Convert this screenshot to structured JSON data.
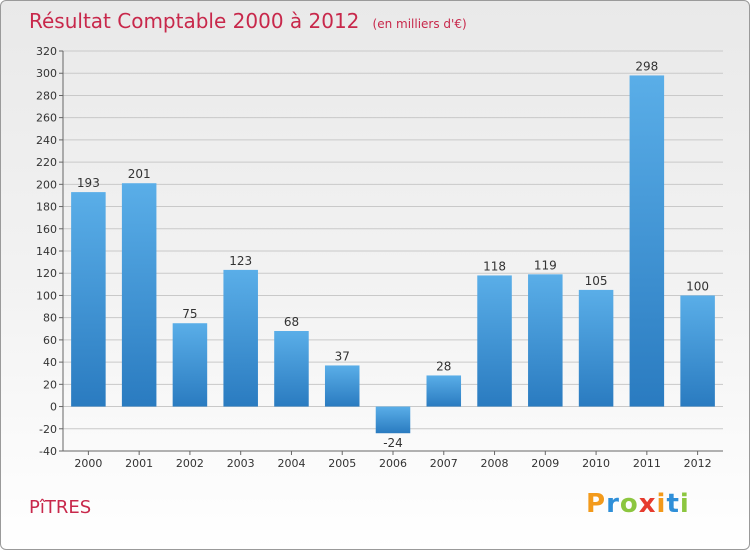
{
  "title": "Résultat Comptable 2000 à 2012",
  "subtitle": "(en milliers d'€)",
  "commune": "PîTRES",
  "logo": {
    "text": "Proxiti",
    "letters": [
      "P",
      "r",
      "o",
      "x",
      "i",
      "t",
      "i"
    ],
    "letter_colors": [
      "#f39a1b",
      "#2f8fd8",
      "#8cc63f",
      "#e63b2e",
      "#f39a1b",
      "#2f8fd8",
      "#8cc63f"
    ]
  },
  "colors": {
    "title": "#c8284b",
    "bar_light": "#5aaee8",
    "bar_dark": "#2a7bc0",
    "grid": "#c9c9c9",
    "axis": "#666666"
  },
  "chart_data": {
    "type": "bar",
    "title": "Résultat Comptable 2000 à 2012",
    "subtitle": "(en milliers d'€)",
    "xlabel": "",
    "ylabel": "",
    "categories": [
      "2000",
      "2001",
      "2002",
      "2003",
      "2004",
      "2005",
      "2006",
      "2007",
      "2008",
      "2009",
      "2010",
      "2011",
      "2012"
    ],
    "values": [
      193,
      201,
      75,
      123,
      68,
      37,
      -24,
      28,
      118,
      119,
      105,
      298,
      100
    ],
    "ylim": [
      -40,
      320
    ],
    "yticks": [
      -40,
      -20,
      0,
      20,
      40,
      60,
      80,
      100,
      120,
      140,
      160,
      180,
      200,
      220,
      240,
      260,
      280,
      300,
      320
    ],
    "grid": true,
    "legend": "none"
  }
}
